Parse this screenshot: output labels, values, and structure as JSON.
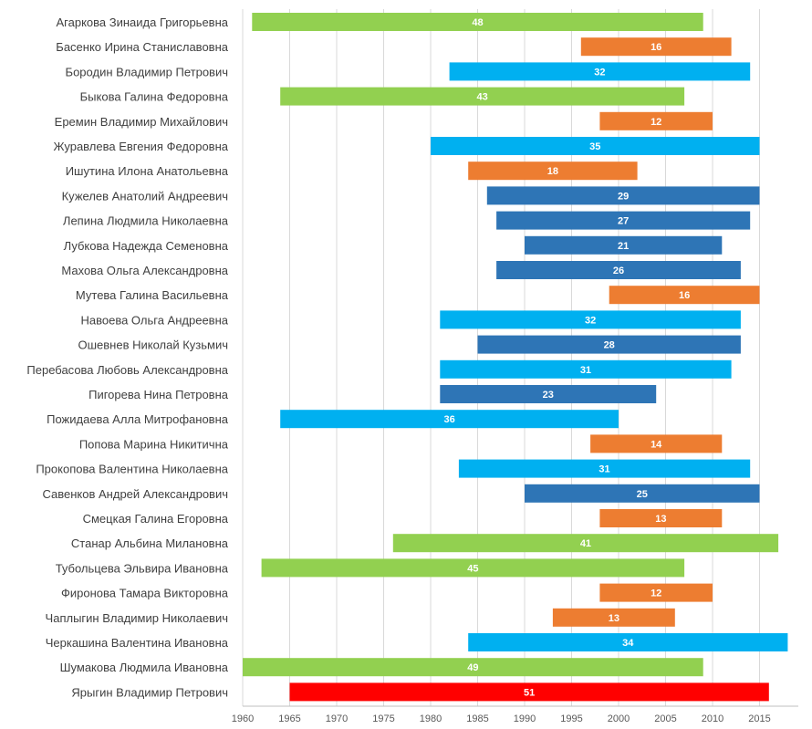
{
  "chart_data": {
    "type": "bar",
    "orientation": "horizontal-range",
    "title": "",
    "xlabel": "",
    "ylabel": "",
    "xlim": [
      1960,
      2019
    ],
    "xticks": [
      1960,
      1965,
      1970,
      1975,
      1980,
      1985,
      1990,
      1995,
      2000,
      2005,
      2010,
      2015
    ],
    "grid": true,
    "legend": "none",
    "colors": {
      "green": "#92d050",
      "orange": "#ed7d31",
      "lightblue": "#00b0f0",
      "darkblue": "#2e75b6",
      "red": "#ff0000"
    },
    "rows": [
      {
        "name": "Агаркова Зинаида Григорьевна",
        "start": 1961,
        "end": 2009,
        "label": "48",
        "color": "green"
      },
      {
        "name": "Басенко Ирина Станиславовна",
        "start": 1996,
        "end": 2012,
        "label": "16",
        "color": "orange"
      },
      {
        "name": "Бородин Владимир Петрович",
        "start": 1982,
        "end": 2014,
        "label": "32",
        "color": "lightblue"
      },
      {
        "name": "Быкова Галина Федоровна",
        "start": 1964,
        "end": 2007,
        "label": "43",
        "color": "green"
      },
      {
        "name": "Еремин Владимир Михайлович",
        "start": 1998,
        "end": 2010,
        "label": "12",
        "color": "orange"
      },
      {
        "name": "Журавлева Евгения Федоровна",
        "start": 1980,
        "end": 2015,
        "label": "35",
        "color": "lightblue"
      },
      {
        "name": "Ишутина Илона Анатольевна",
        "start": 1984,
        "end": 2002,
        "label": "18",
        "color": "orange"
      },
      {
        "name": "Кужелев Анатолий Андреевич",
        "start": 1986,
        "end": 2015,
        "label": "29",
        "color": "darkblue"
      },
      {
        "name": "Лепина Людмила Николаевна",
        "start": 1987,
        "end": 2014,
        "label": "27",
        "color": "darkblue"
      },
      {
        "name": "Лубкова Надежда Семеновна",
        "start": 1990,
        "end": 2011,
        "label": "21",
        "color": "darkblue"
      },
      {
        "name": "Махова Ольга Александровна",
        "start": 1987,
        "end": 2013,
        "label": "26",
        "color": "darkblue"
      },
      {
        "name": "Мутева Галина Васильевна",
        "start": 1999,
        "end": 2015,
        "label": "16",
        "color": "orange"
      },
      {
        "name": "Навоева Ольга Андреевна",
        "start": 1981,
        "end": 2013,
        "label": "32",
        "color": "lightblue"
      },
      {
        "name": "Ошевнев Николай Кузьмич",
        "start": 1985,
        "end": 2013,
        "label": "28",
        "color": "darkblue"
      },
      {
        "name": "Перебасова Любовь Александровна",
        "start": 1981,
        "end": 2012,
        "label": "31",
        "color": "lightblue"
      },
      {
        "name": "Пигорева Нина Петровна",
        "start": 1981,
        "end": 2004,
        "label": "23",
        "color": "darkblue"
      },
      {
        "name": "Пожидаева Алла Митрофановна",
        "start": 1964,
        "end": 2000,
        "label": "36",
        "color": "lightblue"
      },
      {
        "name": "Попова Марина Никитична",
        "start": 1997,
        "end": 2011,
        "label": "14",
        "color": "orange"
      },
      {
        "name": "Прокопова Валентина Николаевна",
        "start": 1983,
        "end": 2014,
        "label": "31",
        "color": "lightblue"
      },
      {
        "name": "Савенков Андрей Александрович",
        "start": 1990,
        "end": 2015,
        "label": "25",
        "color": "darkblue"
      },
      {
        "name": "Смецкая Галина Егоровна",
        "start": 1998,
        "end": 2011,
        "label": "13",
        "color": "orange"
      },
      {
        "name": "Станар Альбина Милановна",
        "start": 1976,
        "end": 2017,
        "label": "41",
        "color": "green"
      },
      {
        "name": "Тубольцева Эльвира Ивановна",
        "start": 1962,
        "end": 2007,
        "label": "45",
        "color": "green"
      },
      {
        "name": "Фиронова Тамара Викторовна",
        "start": 1998,
        "end": 2010,
        "label": "12",
        "color": "orange"
      },
      {
        "name": "Чаплыгин Владимир Николаевич",
        "start": 1993,
        "end": 2006,
        "label": "13",
        "color": "orange"
      },
      {
        "name": "Черкашина Валентина Ивановна",
        "start": 1984,
        "end": 2018,
        "label": "34",
        "color": "lightblue"
      },
      {
        "name": "Шумакова Людмила Ивановна",
        "start": 1960,
        "end": 2009,
        "label": "49",
        "color": "green"
      },
      {
        "name": "Ярыгин Владимир Петрович",
        "start": 1965,
        "end": 2016,
        "label": "51",
        "color": "red"
      }
    ]
  }
}
